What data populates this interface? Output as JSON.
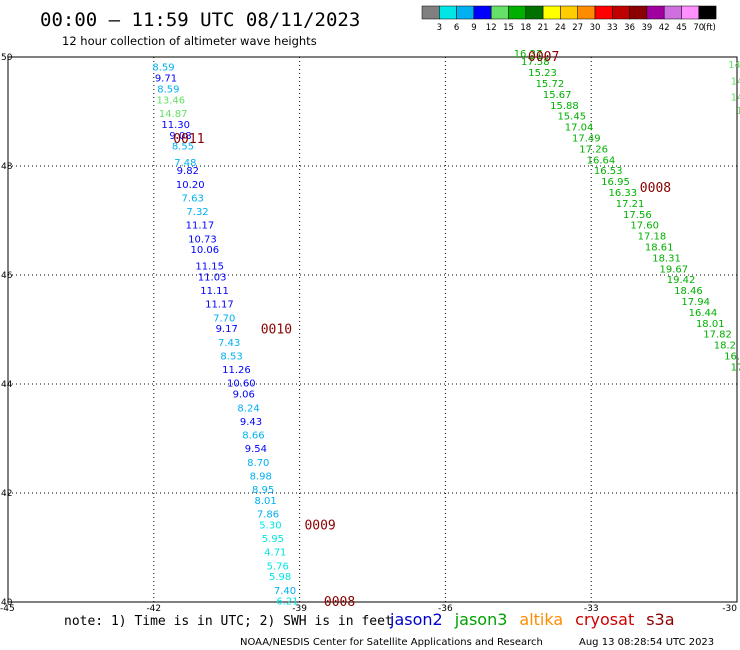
{
  "header": {
    "title": "00:00 — 11:59 UTC 08/11/2023",
    "subtitle": "12 hour collection of altimeter wave heights"
  },
  "colorbar": {
    "colors": [
      "#808080",
      "#00e5e5",
      "#00b0f0",
      "#0000ff",
      "#66e066",
      "#00b000",
      "#007000",
      "#ffff00",
      "#ffcc00",
      "#ff8c00",
      "#ff0000",
      "#c00000",
      "#8b0000",
      "#a000a0",
      "#d070e0",
      "#ff90ff",
      "#000000"
    ],
    "labels": [
      "3",
      "6",
      "9",
      "12",
      "15",
      "18",
      "21",
      "24",
      "27",
      "30",
      "33",
      "36",
      "39",
      "42",
      "45",
      "70",
      "(ft)"
    ]
  },
  "chart_data": {
    "type": "scatter",
    "title": "00:00 — 11:59 UTC 08/11/2023",
    "subtitle": "12 hour collection of altimeter wave heights",
    "xlim": [
      -45,
      -30
    ],
    "ylim": [
      40,
      50
    ],
    "xticks": [
      "-45",
      "-42",
      "-39",
      "-36",
      "-33",
      "-30"
    ],
    "yticks": [
      "40",
      "42",
      "44",
      "46",
      "48",
      "50"
    ],
    "grid": true,
    "pass_labels": [
      {
        "text": "0011",
        "lon": -41.6,
        "lat": 48.5,
        "color": "#8b0000"
      },
      {
        "text": "0010",
        "lon": -39.8,
        "lat": 45.0,
        "color": "#8b0000"
      },
      {
        "text": "0009",
        "lon": -38.9,
        "lat": 41.4,
        "color": "#8b0000"
      },
      {
        "text": "0008",
        "lon": -38.5,
        "lat": 40.0,
        "color": "#8b0000"
      },
      {
        "text": "0007",
        "lon": -34.3,
        "lat": 50.0,
        "color": "#008000"
      },
      {
        "text": "0008",
        "lon": -32.0,
        "lat": 47.6,
        "color": "#008000"
      }
    ],
    "series": [
      {
        "name": "jason2",
        "points": [
          {
            "lon": -41.8,
            "lat": 49.75,
            "v": "8.59",
            "c": "#00b0f0"
          },
          {
            "lon": -41.75,
            "lat": 49.55,
            "v": "9.71",
            "c": "#0000ff"
          },
          {
            "lon": -41.7,
            "lat": 49.35,
            "v": "8.59",
            "c": "#00b0f0"
          },
          {
            "lon": -41.65,
            "lat": 49.15,
            "v": "13.46",
            "c": "#66e066"
          },
          {
            "lon": -41.6,
            "lat": 48.9,
            "v": "14.87",
            "c": "#66e066"
          },
          {
            "lon": -41.55,
            "lat": 48.7,
            "v": "11.30",
            "c": "#0000ff"
          },
          {
            "lon": -41.45,
            "lat": 48.5,
            "v": "9.08",
            "c": "#0000ff"
          },
          {
            "lon": -41.4,
            "lat": 48.3,
            "v": "8.55",
            "c": "#00b0f0"
          },
          {
            "lon": -41.35,
            "lat": 48.0,
            "v": "7.48",
            "c": "#00b0f0"
          },
          {
            "lon": -41.3,
            "lat": 47.85,
            "v": "9.82",
            "c": "#0000ff"
          },
          {
            "lon": -41.25,
            "lat": 47.6,
            "v": "10.20",
            "c": "#0000ff"
          },
          {
            "lon": -41.2,
            "lat": 47.35,
            "v": "7.63",
            "c": "#00b0f0"
          },
          {
            "lon": -41.1,
            "lat": 47.1,
            "v": "7.32",
            "c": "#00b0f0"
          },
          {
            "lon": -41.05,
            "lat": 46.85,
            "v": "11.17",
            "c": "#0000ff"
          },
          {
            "lon": -41.0,
            "lat": 46.6,
            "v": "10.73",
            "c": "#0000ff"
          },
          {
            "lon": -40.95,
            "lat": 46.4,
            "v": "10.06",
            "c": "#0000ff"
          },
          {
            "lon": -40.85,
            "lat": 46.1,
            "v": "11.15",
            "c": "#0000ff"
          },
          {
            "lon": -40.8,
            "lat": 45.9,
            "v": "11.03",
            "c": "#0000ff"
          },
          {
            "lon": -40.75,
            "lat": 45.65,
            "v": "11.11",
            "c": "#0000ff"
          },
          {
            "lon": -40.65,
            "lat": 45.4,
            "v": "11.17",
            "c": "#0000ff"
          },
          {
            "lon": -40.55,
            "lat": 45.15,
            "v": "7.70",
            "c": "#00b0f0"
          },
          {
            "lon": -40.5,
            "lat": 44.95,
            "v": "9.17",
            "c": "#0000ff"
          },
          {
            "lon": -40.45,
            "lat": 44.7,
            "v": "7.43",
            "c": "#00b0f0"
          },
          {
            "lon": -40.4,
            "lat": 44.45,
            "v": "8.53",
            "c": "#00b0f0"
          },
          {
            "lon": -40.3,
            "lat": 44.2,
            "v": "11.26",
            "c": "#0000ff"
          },
          {
            "lon": -40.2,
            "lat": 43.95,
            "v": "10.60",
            "c": "#0000ff"
          },
          {
            "lon": -40.15,
            "lat": 43.75,
            "v": "9.06",
            "c": "#0000ff"
          },
          {
            "lon": -40.05,
            "lat": 43.5,
            "v": "8.24",
            "c": "#00b0f0"
          },
          {
            "lon": -40.0,
            "lat": 43.25,
            "v": "9.43",
            "c": "#0000ff"
          },
          {
            "lon": -39.95,
            "lat": 43.0,
            "v": "8.66",
            "c": "#00b0f0"
          },
          {
            "lon": -39.9,
            "lat": 42.75,
            "v": "9.54",
            "c": "#0000ff"
          },
          {
            "lon": -39.85,
            "lat": 42.5,
            "v": "8.70",
            "c": "#00b0f0"
          },
          {
            "lon": -39.8,
            "lat": 42.25,
            "v": "8.98",
            "c": "#00b0f0"
          },
          {
            "lon": -39.75,
            "lat": 42.0,
            "v": "8.95",
            "c": "#00b0f0"
          },
          {
            "lon": -39.7,
            "lat": 41.8,
            "v": "8.01",
            "c": "#00b0f0"
          },
          {
            "lon": -39.65,
            "lat": 41.55,
            "v": "7.86",
            "c": "#00b0f0"
          },
          {
            "lon": -39.6,
            "lat": 41.35,
            "v": "5.30",
            "c": "#00e5e5"
          },
          {
            "lon": -39.55,
            "lat": 41.1,
            "v": "5.95",
            "c": "#00e5e5"
          },
          {
            "lon": -39.5,
            "lat": 40.85,
            "v": "4.71",
            "c": "#00e5e5"
          },
          {
            "lon": -39.45,
            "lat": 40.6,
            "v": "5.76",
            "c": "#00e5e5"
          },
          {
            "lon": -39.4,
            "lat": 40.4,
            "v": "5.98",
            "c": "#00e5e5"
          },
          {
            "lon": -39.3,
            "lat": 40.15,
            "v": "7.40",
            "c": "#00b0f0"
          },
          {
            "lon": -39.25,
            "lat": 39.95,
            "v": "6.21",
            "c": "#00e5e5"
          }
        ]
      },
      {
        "name": "jason3",
        "points": [
          {
            "lon": -34.3,
            "lat": 50.0,
            "v": "16.37",
            "c": "#00b000"
          },
          {
            "lon": -34.15,
            "lat": 49.85,
            "v": "17.58",
            "c": "#00b000"
          },
          {
            "lon": -34.0,
            "lat": 49.65,
            "v": "15.23",
            "c": "#00b000"
          },
          {
            "lon": -33.85,
            "lat": 49.45,
            "v": "15.72",
            "c": "#00b000"
          },
          {
            "lon": -33.7,
            "lat": 49.25,
            "v": "15.67",
            "c": "#00b000"
          },
          {
            "lon": -33.55,
            "lat": 49.05,
            "v": "15.88",
            "c": "#00b000"
          },
          {
            "lon": -33.4,
            "lat": 48.85,
            "v": "15.45",
            "c": "#00b000"
          },
          {
            "lon": -33.25,
            "lat": 48.65,
            "v": "17.04",
            "c": "#00b000"
          },
          {
            "lon": -33.1,
            "lat": 48.45,
            "v": "17.49",
            "c": "#00b000"
          },
          {
            "lon": -32.95,
            "lat": 48.25,
            "v": "17.26",
            "c": "#00b000"
          },
          {
            "lon": -32.8,
            "lat": 48.05,
            "v": "16.64",
            "c": "#00b000"
          },
          {
            "lon": -32.65,
            "lat": 47.85,
            "v": "16.53",
            "c": "#00b000"
          },
          {
            "lon": -32.5,
            "lat": 47.65,
            "v": "16.95",
            "c": "#00b000"
          },
          {
            "lon": -32.35,
            "lat": 47.45,
            "v": "16.33",
            "c": "#00b000"
          },
          {
            "lon": -32.2,
            "lat": 47.25,
            "v": "17.21",
            "c": "#00b000"
          },
          {
            "lon": -32.05,
            "lat": 47.05,
            "v": "17.56",
            "c": "#00b000"
          },
          {
            "lon": -31.9,
            "lat": 46.85,
            "v": "17.60",
            "c": "#00b000"
          },
          {
            "lon": -31.75,
            "lat": 46.65,
            "v": "17.18",
            "c": "#00b000"
          },
          {
            "lon": -31.6,
            "lat": 46.45,
            "v": "18.61",
            "c": "#00b000"
          },
          {
            "lon": -31.45,
            "lat": 46.25,
            "v": "18.31",
            "c": "#00b000"
          },
          {
            "lon": -31.3,
            "lat": 46.05,
            "v": "19.67",
            "c": "#00b000"
          },
          {
            "lon": -31.15,
            "lat": 45.85,
            "v": "19.42",
            "c": "#00b000"
          },
          {
            "lon": -31.0,
            "lat": 45.65,
            "v": "18.46",
            "c": "#00b000"
          },
          {
            "lon": -30.85,
            "lat": 45.45,
            "v": "17.94",
            "c": "#00b000"
          },
          {
            "lon": -30.7,
            "lat": 45.25,
            "v": "16.44",
            "c": "#00b000"
          },
          {
            "lon": -30.55,
            "lat": 45.05,
            "v": "18.01",
            "c": "#00b000"
          },
          {
            "lon": -30.4,
            "lat": 44.85,
            "v": "17.82",
            "c": "#00b000"
          },
          {
            "lon": -30.25,
            "lat": 44.65,
            "v": "18.2",
            "c": "#00b000"
          },
          {
            "lon": -30.1,
            "lat": 44.45,
            "v": "16.",
            "c": "#00b000"
          },
          {
            "lon": -30.0,
            "lat": 44.25,
            "v": "17",
            "c": "#00b000"
          },
          {
            "lon": -30.05,
            "lat": 49.8,
            "v": "14",
            "c": "#66e066"
          },
          {
            "lon": -30.0,
            "lat": 49.5,
            "v": "14",
            "c": "#66e066"
          },
          {
            "lon": -30.0,
            "lat": 49.2,
            "v": "14",
            "c": "#66e066"
          },
          {
            "lon": -29.95,
            "lat": 48.95,
            "v": "1",
            "c": "#66e066"
          }
        ]
      }
    ]
  },
  "note": "note: 1) Time is in UTC; 2) SWH is in feet",
  "missions": [
    {
      "name": "jason2",
      "color": "#0000cc"
    },
    {
      "name": "jason3",
      "color": "#00a000"
    },
    {
      "name": "altika",
      "color": "#ff8c00"
    },
    {
      "name": "cryosat",
      "color": "#cc0000"
    },
    {
      "name": "s3a",
      "color": "#8b0000"
    }
  ],
  "footer": {
    "credit": "NOAA/NESDIS Center for Satellite Applications and Research",
    "timestamp": "Aug 13 08:28:54 UTC 2023"
  }
}
